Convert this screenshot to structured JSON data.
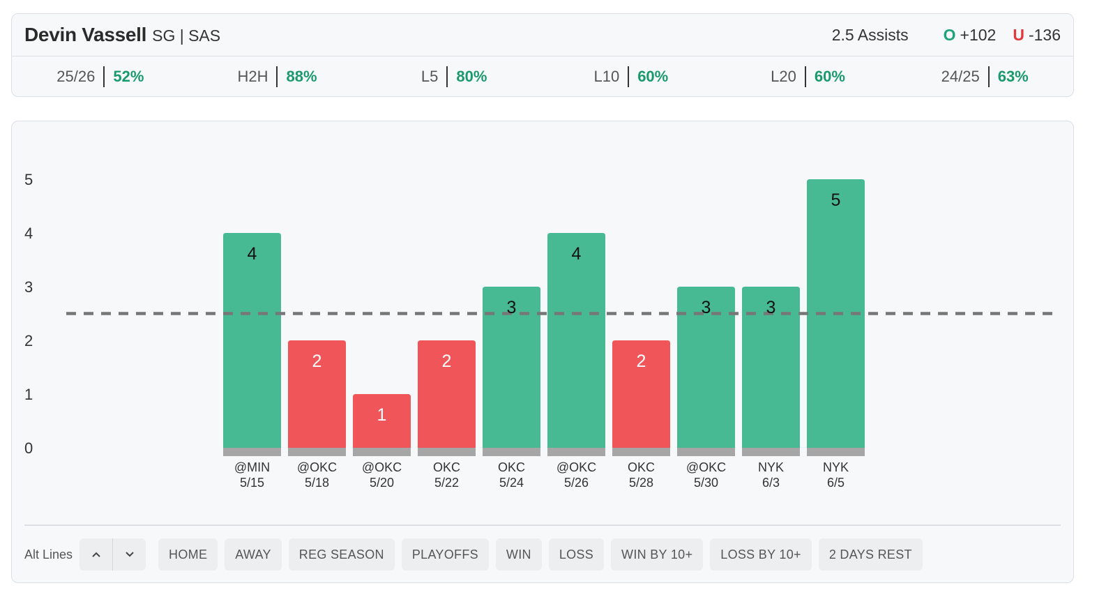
{
  "player": {
    "name": "Devin Vassell",
    "meta": "SG | SAS"
  },
  "line": {
    "prop": "2.5 Assists",
    "over_key": "O",
    "over_odds": "+102",
    "under_key": "U",
    "under_odds": "-136"
  },
  "stats": [
    {
      "label": "25/26",
      "value": "52%"
    },
    {
      "label": "H2H",
      "value": "88%"
    },
    {
      "label": "L5",
      "value": "80%"
    },
    {
      "label": "L10",
      "value": "60%"
    },
    {
      "label": "L20",
      "value": "60%"
    },
    {
      "label": "24/25",
      "value": "63%"
    }
  ],
  "colors": {
    "over": "#47ba94",
    "under": "#f05659",
    "accent_green": "#1a9a6c",
    "accent_red": "#e0393e"
  },
  "chart_data": {
    "type": "bar",
    "line_value": 2.5,
    "ylim": [
      0,
      5
    ],
    "yticks": [
      0,
      1,
      2,
      3,
      4,
      5
    ],
    "games": [
      {
        "opp": "@MIN",
        "date": "5/15",
        "value": 4
      },
      {
        "opp": "@OKC",
        "date": "5/18",
        "value": 2
      },
      {
        "opp": "@OKC",
        "date": "5/20",
        "value": 1
      },
      {
        "opp": "OKC",
        "date": "5/22",
        "value": 2
      },
      {
        "opp": "OKC",
        "date": "5/24",
        "value": 3
      },
      {
        "opp": "@OKC",
        "date": "5/26",
        "value": 4
      },
      {
        "opp": "OKC",
        "date": "5/28",
        "value": 2
      },
      {
        "opp": "@OKC",
        "date": "5/30",
        "value": 3
      },
      {
        "opp": "NYK",
        "date": "6/3",
        "value": 3
      },
      {
        "opp": "NYK",
        "date": "6/5",
        "value": 5
      }
    ]
  },
  "filters": {
    "alt_lines_label": "Alt Lines",
    "up_icon": "chevron-up-icon",
    "down_icon": "chevron-down-icon",
    "chips": [
      "HOME",
      "AWAY",
      "REG SEASON",
      "PLAYOFFS",
      "WIN",
      "LOSS",
      "WIN BY 10+",
      "LOSS BY 10+",
      "2 DAYS REST"
    ]
  }
}
